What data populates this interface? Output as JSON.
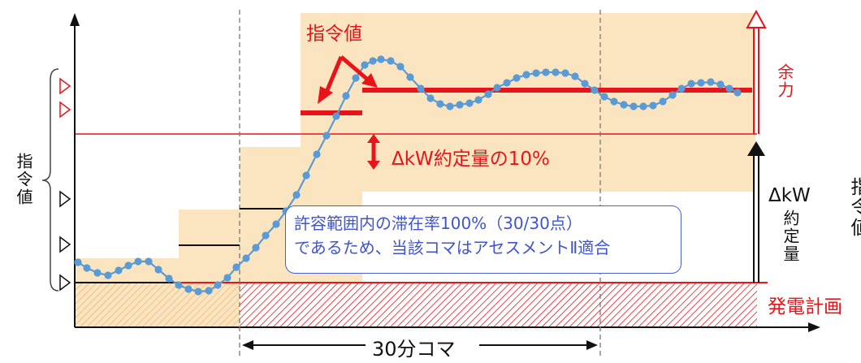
{
  "labels": {
    "command_value_top": "指令値",
    "margin": "余力",
    "delta_kw_10pct": "ΔkW約定量の10%",
    "left_axis": "指令値",
    "delta_kw": "ΔkW",
    "contract_amount": "約定量",
    "right_partial": "指令値",
    "generation_plan": "発電計画",
    "koma": "30分コマ"
  },
  "callout": {
    "line1": "許容範囲内の滞在率100%（30/30点）",
    "line2": "であるため、当該コマはアセスメントⅡ適合"
  },
  "colors": {
    "red": "#e8141a",
    "band": "#fbe5c0",
    "wave": "#5b9bd5",
    "callout_text": "#3f55d0"
  }
}
